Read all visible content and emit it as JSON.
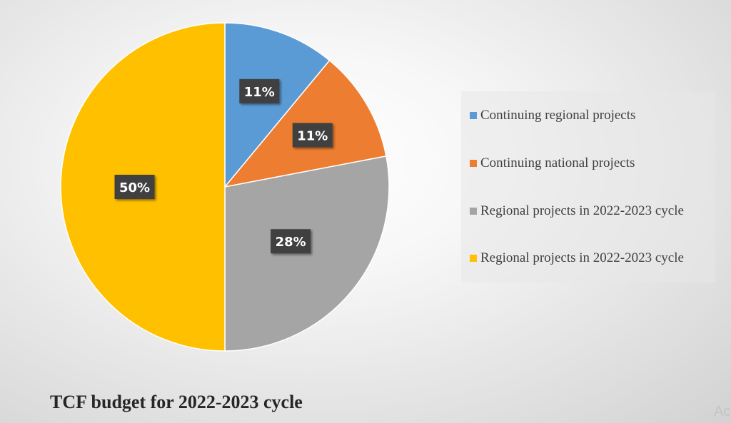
{
  "chart_data": {
    "type": "pie",
    "title": "TCF budget for 2022-2023 cycle",
    "categories": [
      "Continuing regional projects",
      "Continuing national projects",
      "Regional projects in 2022-2023 cycle",
      "Regional projects in 2022-2023 cycle"
    ],
    "values": [
      11,
      11,
      28,
      50
    ],
    "data_labels": [
      "11%",
      "11%",
      "28%",
      "50%"
    ],
    "colors": [
      "#5B9BD5",
      "#ED7D31",
      "#A5A5A5",
      "#FFC000"
    ],
    "legend_position": "right"
  },
  "corner_text": "Ac"
}
